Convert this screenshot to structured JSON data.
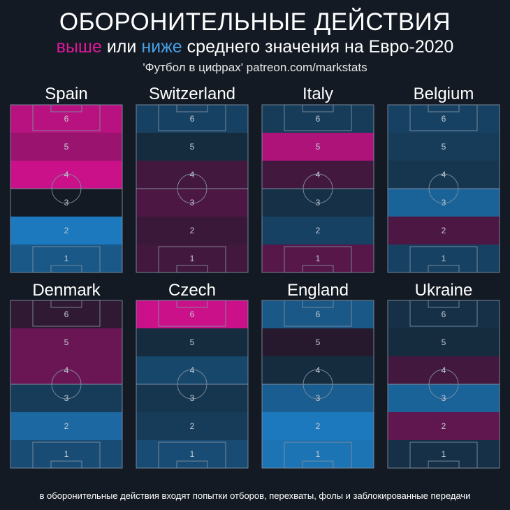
{
  "header": {
    "title": "ОБОРОНИТЕЛЬНЫЕ ДЕЙСТВИЯ",
    "subtitle_high": "выше",
    "subtitle_or": " или ",
    "subtitle_low": "ниже",
    "subtitle_rest": " среднего значения на Евро-2020",
    "credit": "'Футбол в цифрах' patreon.com/markstats"
  },
  "footnote": "в оборонительные действия входят попытки отборов, перехваты, фолы и заблокированные передачи",
  "colors": {
    "background": "#131a23",
    "above_max": "#d4118f",
    "neutral": "#131a23",
    "below_max": "#1e8ad8",
    "line": "#7f8ea0"
  },
  "chart_data": {
    "type": "heatmap",
    "value_scale": "zones colored by deviation from tournament average: positive = above (pink), negative = below (blue)",
    "zones": [
      "1",
      "2",
      "3",
      "4",
      "5",
      "6"
    ],
    "teams": [
      {
        "name": "Spain",
        "values": [
          -0.55,
          -0.85,
          0.0,
          0.95,
          0.7,
          0.85
        ]
      },
      {
        "name": "Switzerland",
        "values": [
          0.25,
          0.2,
          0.3,
          0.25,
          -0.15,
          -0.35
        ]
      },
      {
        "name": "Italy",
        "values": [
          0.35,
          -0.35,
          -0.2,
          0.25,
          0.8,
          -0.3
        ]
      },
      {
        "name": "Belgium",
        "values": [
          -0.35,
          0.3,
          -0.65,
          -0.25,
          -0.3,
          -0.35
        ]
      },
      {
        "name": "Denmark",
        "values": [
          -0.45,
          -0.7,
          -0.3,
          0.45,
          0.45,
          0.15
        ]
      },
      {
        "name": "Czech",
        "values": [
          -0.45,
          -0.3,
          -0.25,
          -0.4,
          -0.15,
          0.95
        ]
      },
      {
        "name": "England",
        "values": [
          -0.8,
          -0.85,
          -0.6,
          -0.15,
          0.1,
          -0.55
        ]
      },
      {
        "name": "Ukraine",
        "values": [
          -0.2,
          0.4,
          -0.65,
          0.25,
          -0.15,
          -0.2
        ]
      }
    ]
  }
}
